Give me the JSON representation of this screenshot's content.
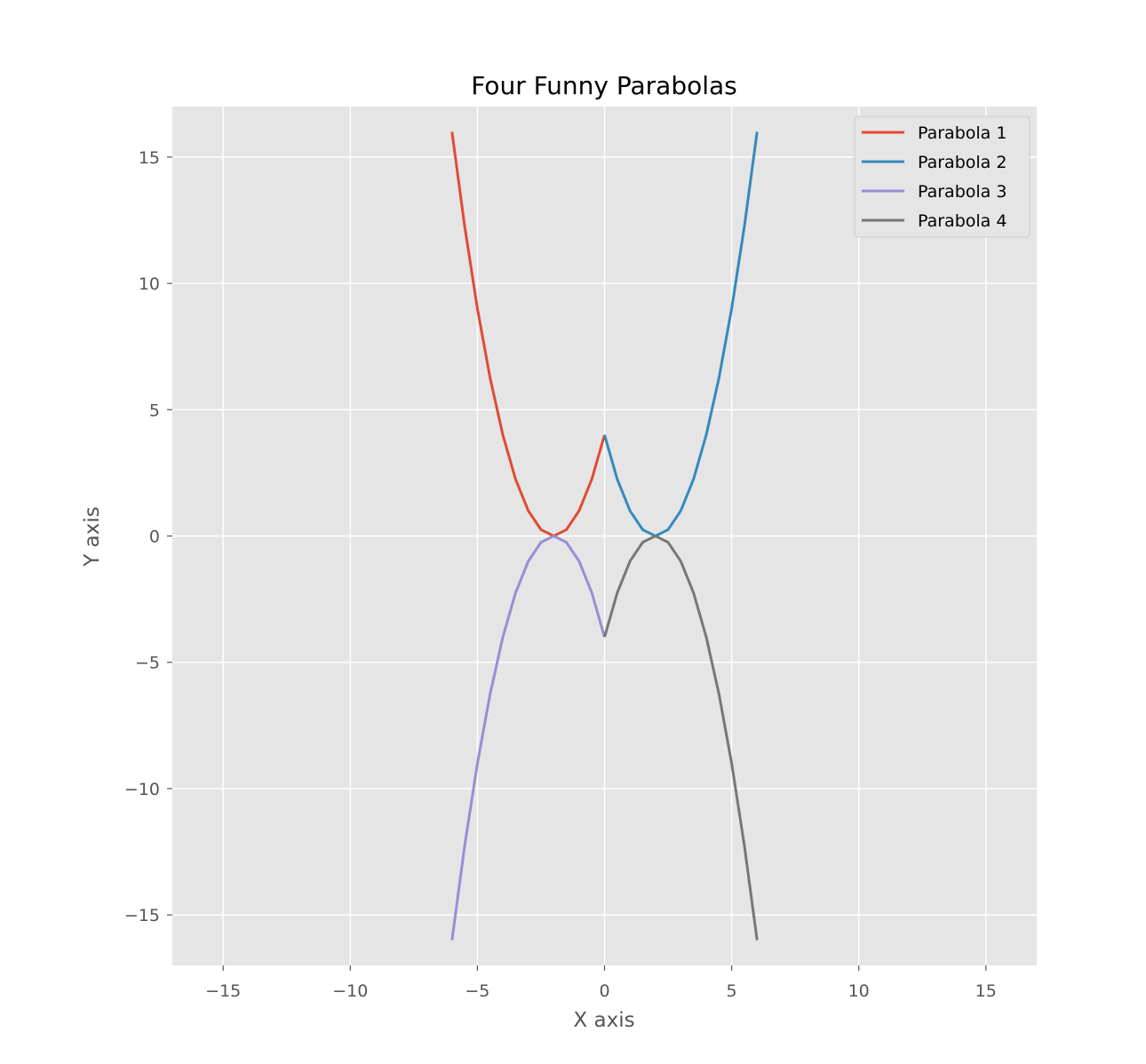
{
  "chart_data": {
    "type": "line",
    "title": "Four Funny Parabolas",
    "xlabel": "X axis",
    "ylabel": "Y axis",
    "xlim": [
      -17,
      17
    ],
    "ylim": [
      -17,
      17
    ],
    "xticks": [
      -15,
      -10,
      -5,
      0,
      5,
      10,
      15
    ],
    "yticks": [
      -15,
      -10,
      -5,
      0,
      5,
      10,
      15
    ],
    "xtick_labels": [
      "−15",
      "−10",
      "−5",
      "0",
      "5",
      "10",
      "15"
    ],
    "ytick_labels": [
      "−15",
      "−10",
      "−5",
      "0",
      "5",
      "10",
      "15"
    ],
    "grid": true,
    "legend_position": "top-right",
    "background": "#e5e5e5",
    "series": [
      {
        "name": "Parabola 1",
        "color": "#e24a33",
        "x": [
          -6,
          -5.5,
          -5,
          -4.5,
          -4,
          -3.5,
          -3,
          -2.5,
          -2,
          -1.5,
          -1,
          -0.5,
          0
        ],
        "y": [
          16,
          12.25,
          9,
          6.25,
          4,
          2.25,
          1,
          0.25,
          0,
          0.25,
          1,
          2.25,
          4
        ]
      },
      {
        "name": "Parabola 2",
        "color": "#348abd",
        "x": [
          0,
          0.5,
          1,
          1.5,
          2,
          2.5,
          3,
          3.5,
          4,
          4.5,
          5,
          5.5,
          6
        ],
        "y": [
          4,
          2.25,
          1,
          0.25,
          0,
          0.25,
          1,
          2.25,
          4,
          6.25,
          9,
          12.25,
          16
        ]
      },
      {
        "name": "Parabola 3",
        "color": "#988ed5",
        "x": [
          -6,
          -5.5,
          -5,
          -4.5,
          -4,
          -3.5,
          -3,
          -2.5,
          -2,
          -1.5,
          -1,
          -0.5,
          0
        ],
        "y": [
          -16,
          -12.25,
          -9,
          -6.25,
          -4,
          -2.25,
          -1,
          -0.25,
          0,
          -0.25,
          -1,
          -2.25,
          -4
        ]
      },
      {
        "name": "Parabola 4",
        "color": "#777777",
        "x": [
          0,
          0.5,
          1,
          1.5,
          2,
          2.5,
          3,
          3.5,
          4,
          4.5,
          5,
          5.5,
          6
        ],
        "y": [
          -4,
          -2.25,
          -1,
          -0.25,
          0,
          -0.25,
          -1,
          -2.25,
          -4,
          -6.25,
          -9,
          -12.25,
          -16
        ]
      }
    ]
  }
}
